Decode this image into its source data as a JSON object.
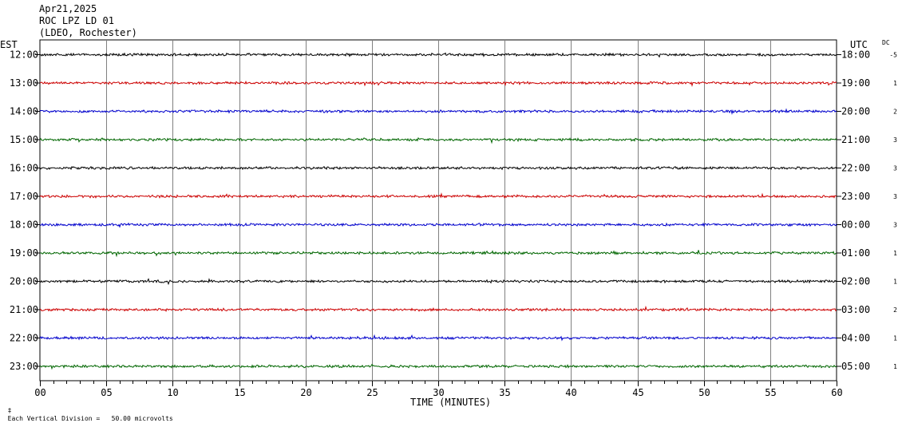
{
  "header": {
    "date": "Apr21,2025",
    "station": "ROC LPZ LD 01",
    "network": "(LDEO, Rochester)"
  },
  "left_axis_label": "EST",
  "right_axis_label": "UTC",
  "dc_label": "DC",
  "x_axis_title": "TIME (MINUTES)",
  "footer": "Each Vertical Division =   50.00 microvolts",
  "colors": {
    "black": "#000000",
    "red": "#cc0000",
    "blue": "#0000cc",
    "green": "#006600",
    "grid": "#808080"
  },
  "chart_data": {
    "type": "line",
    "title": "ROC LPZ LD 01",
    "xlabel": "TIME (MINUTES)",
    "xlim": [
      0,
      60
    ],
    "x_ticks": [
      "00",
      "05",
      "10",
      "15",
      "20",
      "25",
      "30",
      "35",
      "40",
      "45",
      "50",
      "55",
      "60"
    ],
    "traces": [
      {
        "est": "12:00",
        "utc": "18:00",
        "dc": "-5",
        "color": "#000000"
      },
      {
        "est": "13:00",
        "utc": "19:00",
        "dc": "1",
        "color": "#cc0000"
      },
      {
        "est": "14:00",
        "utc": "20:00",
        "dc": "2",
        "color": "#0000cc"
      },
      {
        "est": "15:00",
        "utc": "21:00",
        "dc": "3",
        "color": "#006600"
      },
      {
        "est": "16:00",
        "utc": "22:00",
        "dc": "3",
        "color": "#000000"
      },
      {
        "est": "17:00",
        "utc": "23:00",
        "dc": "3",
        "color": "#cc0000"
      },
      {
        "est": "18:00",
        "utc": "00:00",
        "dc": "3",
        "color": "#0000cc"
      },
      {
        "est": "19:00",
        "utc": "01:00",
        "dc": "1",
        "color": "#006600"
      },
      {
        "est": "20:00",
        "utc": "02:00",
        "dc": "1",
        "color": "#000000"
      },
      {
        "est": "21:00",
        "utc": "03:00",
        "dc": "2",
        "color": "#cc0000"
      },
      {
        "est": "22:00",
        "utc": "04:00",
        "dc": "1",
        "color": "#0000cc"
      },
      {
        "est": "23:00",
        "utc": "05:00",
        "dc": "1",
        "color": "#006600"
      }
    ]
  }
}
